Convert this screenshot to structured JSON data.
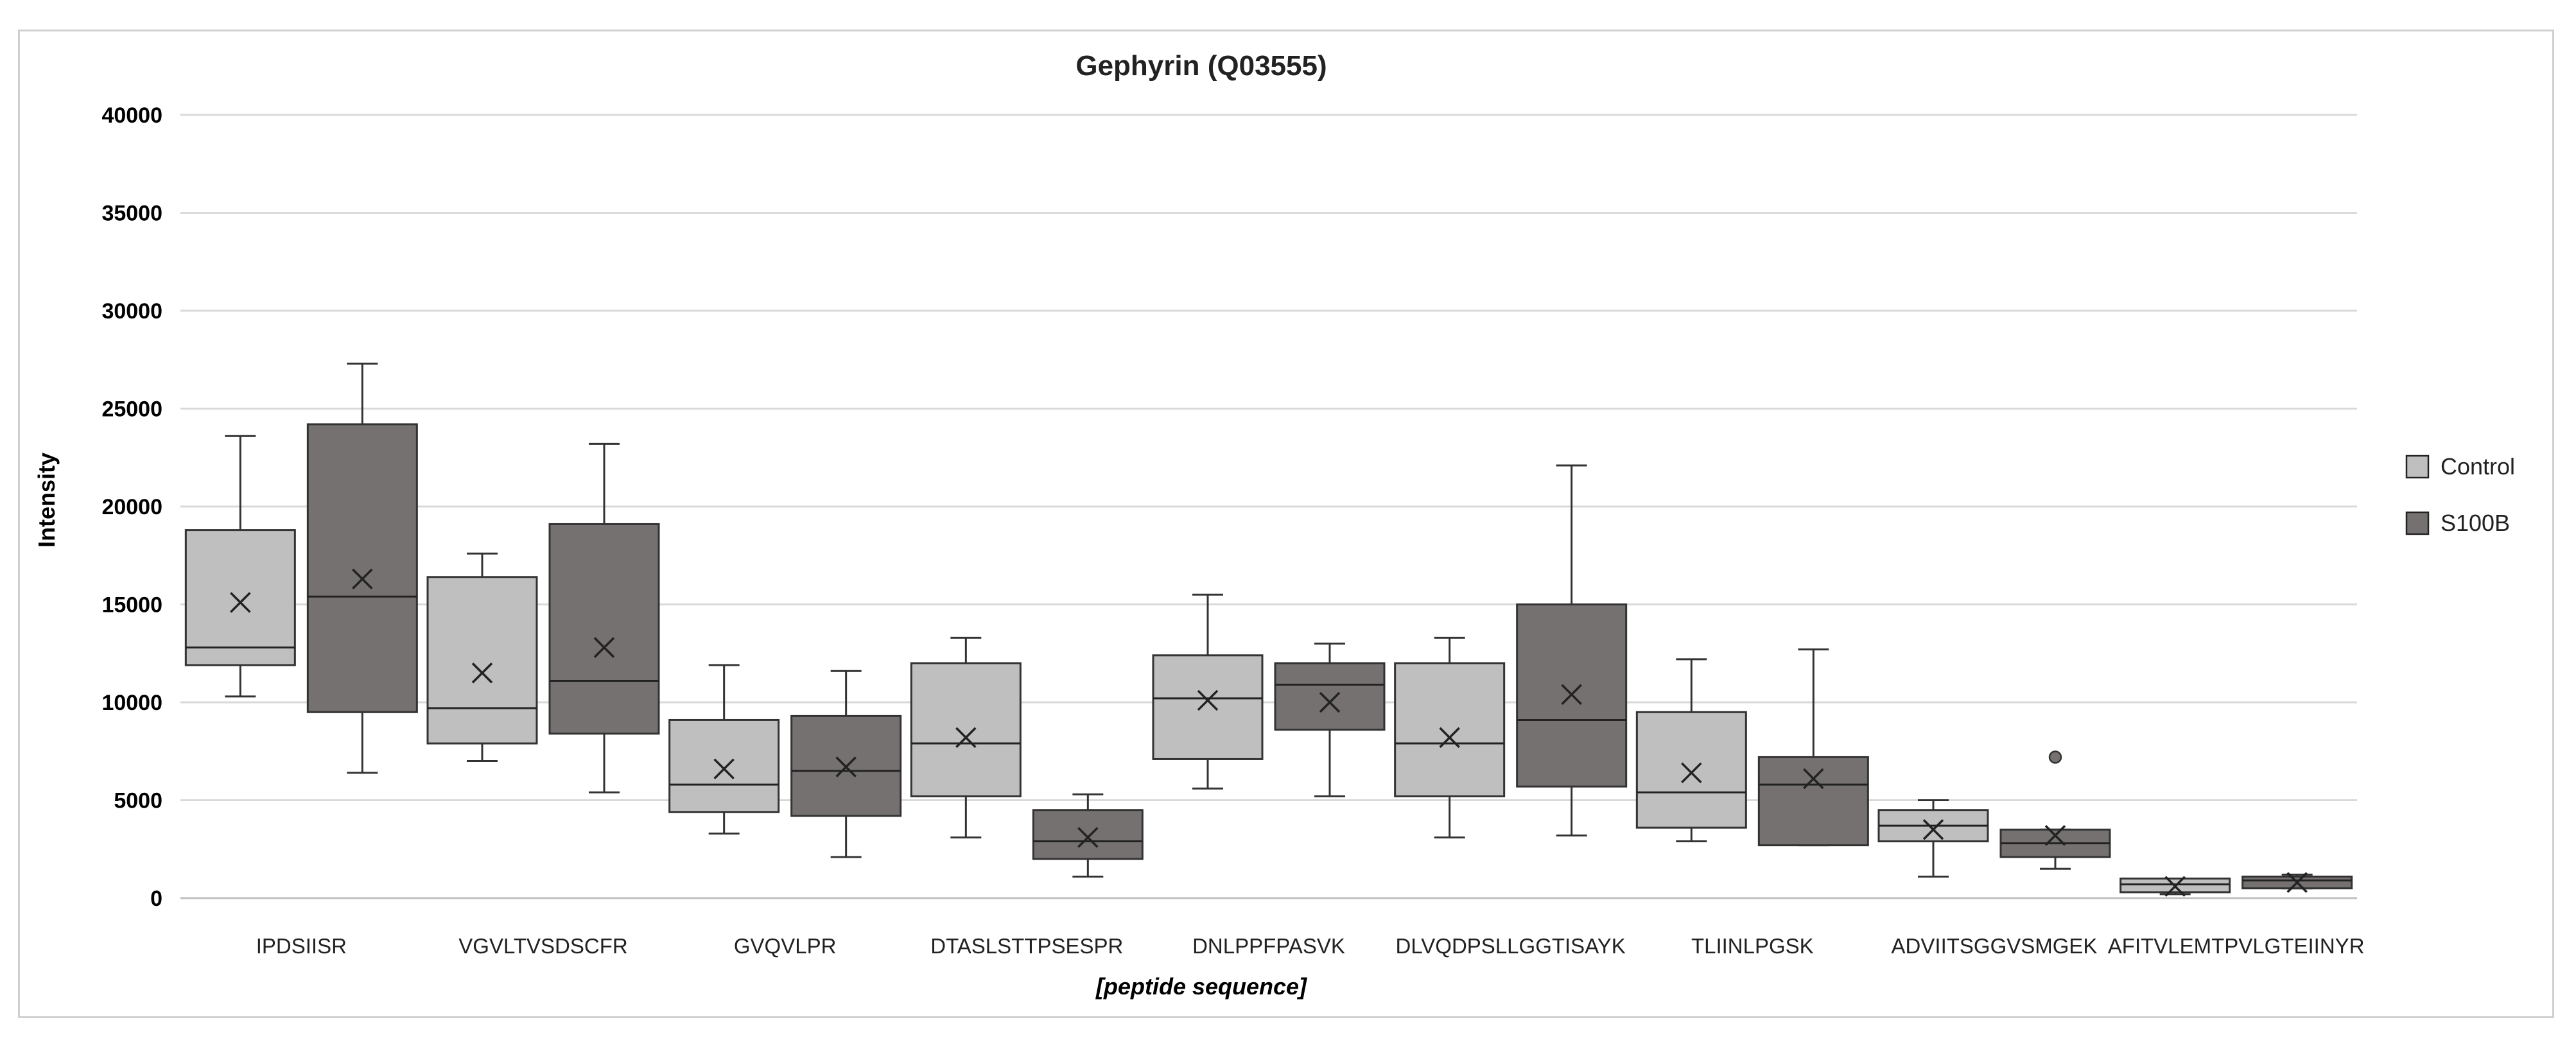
{
  "chart_data": {
    "type": "boxplot",
    "title": "Gephyrin (Q03555)",
    "ylabel": "Intensity",
    "xlabel": "[peptide sequence]",
    "ylim": [
      0,
      40000
    ],
    "yticks": [
      0,
      5000,
      10000,
      15000,
      20000,
      25000,
      30000,
      35000,
      40000
    ],
    "grid": true,
    "legend_position": "right",
    "categories": [
      "IPDSIISR",
      "VGVLTVSDSCFR",
      "GVQVLPR",
      "DTASLSTTPSESPR",
      "DNLPPFPASVK",
      "DLVQDPSLLGGTISAYK",
      "TLIINLPGSK",
      "ADVIITSGGVSMGEK",
      "AFITVLEMTPVLGTEIINYR"
    ],
    "series": [
      {
        "name": "Control",
        "color": "#bfbfbf",
        "boxes": [
          {
            "min": 10300,
            "q1": 11900,
            "median": 12800,
            "q3": 18800,
            "max": 23600,
            "mean": 15100,
            "outliers": []
          },
          {
            "min": 7000,
            "q1": 7900,
            "median": 9700,
            "q3": 16400,
            "max": 17600,
            "mean": 11500,
            "outliers": []
          },
          {
            "min": 3300,
            "q1": 4400,
            "median": 5800,
            "q3": 9100,
            "max": 11900,
            "mean": 6600,
            "outliers": []
          },
          {
            "min": 3100,
            "q1": 5200,
            "median": 7900,
            "q3": 12000,
            "max": 13300,
            "mean": 8200,
            "outliers": []
          },
          {
            "min": 5600,
            "q1": 7100,
            "median": 10200,
            "q3": 12400,
            "max": 15500,
            "mean": 10100,
            "outliers": []
          },
          {
            "min": 3100,
            "q1": 5200,
            "median": 7900,
            "q3": 12000,
            "max": 13300,
            "mean": 8200,
            "outliers": []
          },
          {
            "min": 2900,
            "q1": 3600,
            "median": 5400,
            "q3": 9500,
            "max": 12200,
            "mean": 6400,
            "outliers": []
          },
          {
            "min": 1100,
            "q1": 2900,
            "median": 3700,
            "q3": 4500,
            "max": 5000,
            "mean": 3500,
            "outliers": []
          },
          {
            "min": 200,
            "q1": 300,
            "median": 700,
            "q3": 1000,
            "max": 1000,
            "mean": 600,
            "outliers": []
          }
        ]
      },
      {
        "name": "S100B",
        "color": "#757171",
        "boxes": [
          {
            "min": 6400,
            "q1": 9500,
            "median": 15400,
            "q3": 24200,
            "max": 27300,
            "mean": 16300,
            "outliers": []
          },
          {
            "min": 5400,
            "q1": 8400,
            "median": 11100,
            "q3": 19100,
            "max": 23200,
            "mean": 12800,
            "outliers": []
          },
          {
            "min": 2100,
            "q1": 4200,
            "median": 6500,
            "q3": 9300,
            "max": 11600,
            "mean": 6700,
            "outliers": []
          },
          {
            "min": 1100,
            "q1": 2000,
            "median": 2900,
            "q3": 4500,
            "max": 5300,
            "mean": 3100,
            "outliers": []
          },
          {
            "min": 5200,
            "q1": 8600,
            "median": 10900,
            "q3": 12000,
            "max": 13000,
            "mean": 10000,
            "outliers": []
          },
          {
            "min": 3200,
            "q1": 5700,
            "median": 9100,
            "q3": 15000,
            "max": 22100,
            "mean": 10400,
            "outliers": []
          },
          {
            "min": 2700,
            "q1": 2700,
            "median": 5800,
            "q3": 7200,
            "max": 12700,
            "mean": 6100,
            "outliers": []
          },
          {
            "min": 1500,
            "q1": 2100,
            "median": 2800,
            "q3": 3500,
            "max": 3500,
            "mean": 3200,
            "outliers": [
              7200
            ]
          },
          {
            "min": 500,
            "q1": 500,
            "median": 900,
            "q3": 1100,
            "max": 1200,
            "mean": 800,
            "outliers": []
          }
        ]
      }
    ]
  }
}
